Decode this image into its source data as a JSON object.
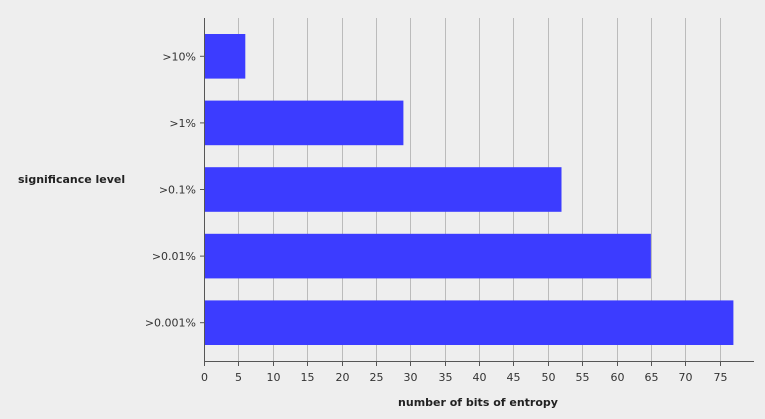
{
  "chart_data": {
    "type": "bar",
    "orientation": "horizontal",
    "title": "",
    "xlabel": "number of bits of entropy",
    "ylabel": "significance level",
    "categories": [
      ">10%",
      ">1%",
      ">0.1%",
      ">0.01%",
      ">0.001%"
    ],
    "values": [
      6,
      29,
      52,
      65,
      77
    ],
    "xlim": [
      0,
      80
    ],
    "xticks": [
      0,
      5,
      10,
      15,
      20,
      25,
      30,
      35,
      40,
      45,
      50,
      55,
      60,
      65,
      70,
      75
    ],
    "grid": "vertical",
    "legend": "none",
    "bar_color": "#3c3cff",
    "grid_color": "#bbbbbb",
    "background": "#eeeeee"
  }
}
